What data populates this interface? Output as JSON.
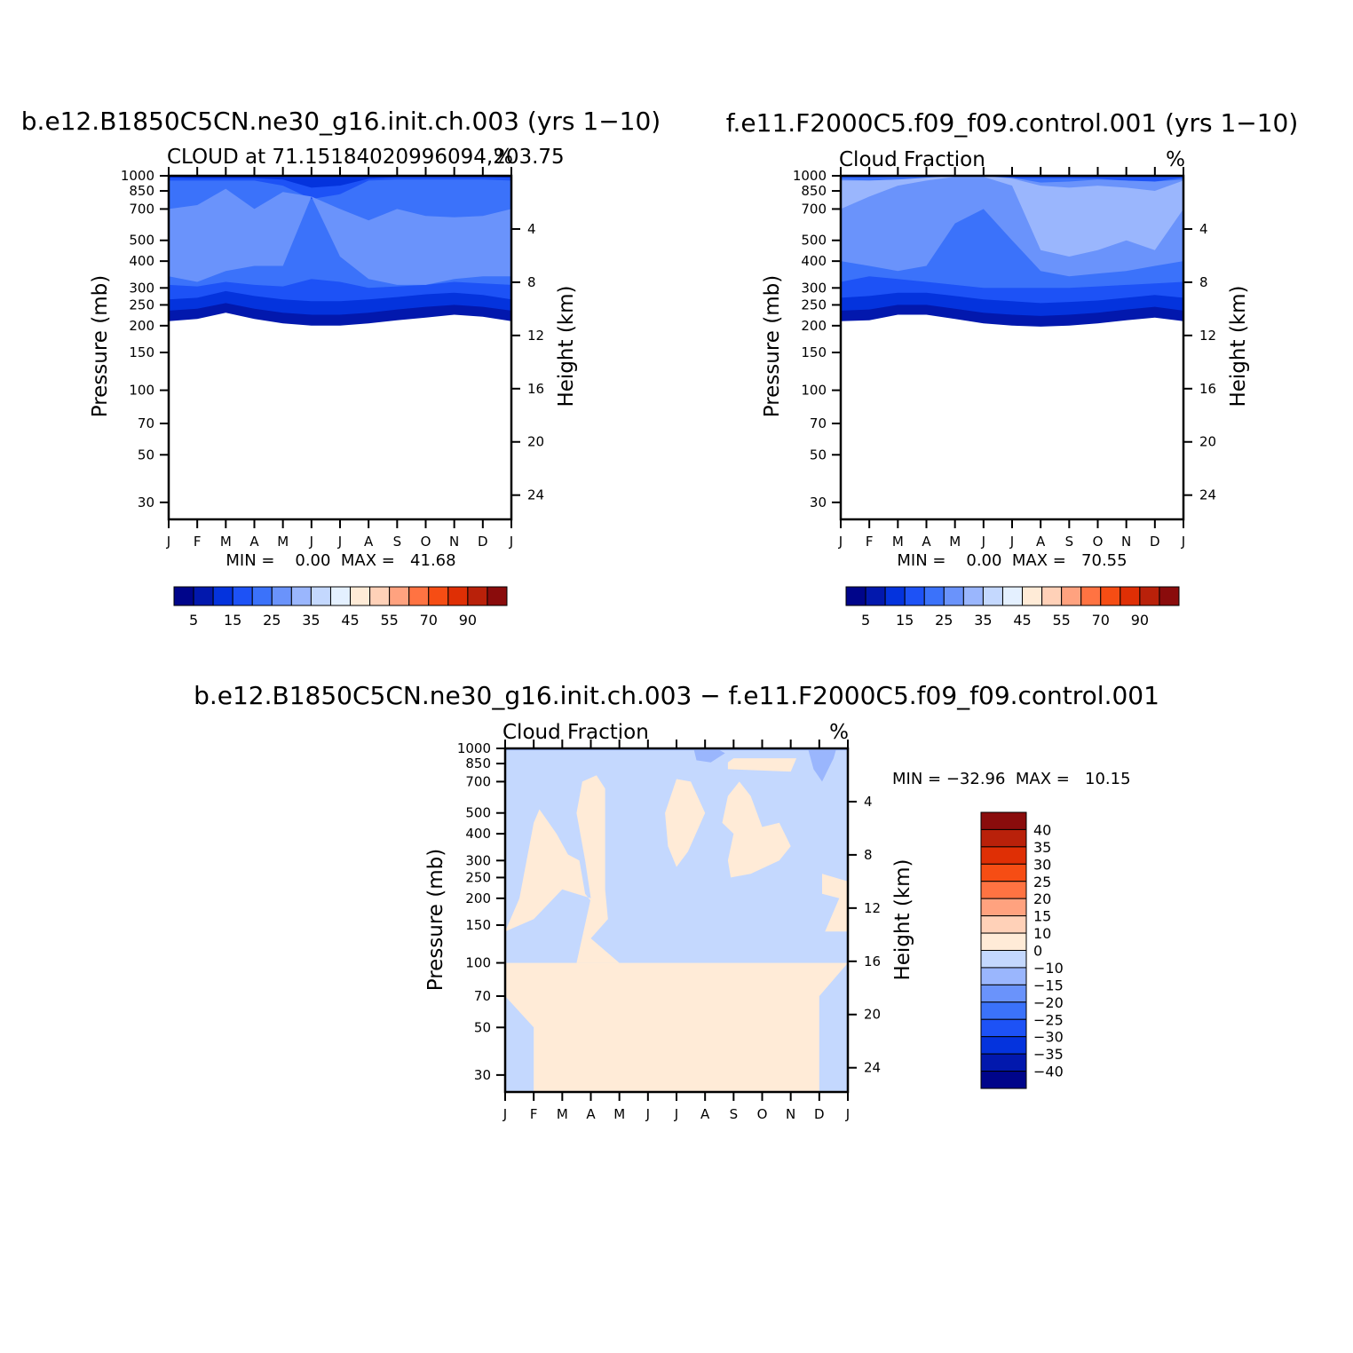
{
  "colors": {
    "abs_levels": [
      "#00058a",
      "#0218ad",
      "#0433dd",
      "#1d52f6",
      "#3b72fa",
      "#6a93fb",
      "#9ab6fd",
      "#c4d8fe",
      "#e4f0ff",
      "#ffebd7",
      "#ffd1b8",
      "#ffa27f",
      "#ff7342",
      "#f64d14",
      "#df2f05",
      "#b9210a",
      "#8a0c0c"
    ],
    "diff_levels": [
      "#00058a",
      "#0218ad",
      "#0433dd",
      "#1d52f6",
      "#3b72fa",
      "#6a93fb",
      "#9ab6fd",
      "#c4d8fe",
      "#e4f0ff",
      "#ffebd7",
      "#ffd1b8",
      "#ffa27f",
      "#ff7342",
      "#f64d14",
      "#df2f05",
      "#b9210a",
      "#8a0c0c"
    ]
  },
  "chart_data": [
    {
      "type": "contour",
      "title": "b.e12.B1850C5CN.ne30_g16.init.ch.003 (yrs 1−10)",
      "subtitle_left": "CLOUD at 71.15184020996094,203.75",
      "subtitle_right": "%",
      "ylabel": "Pressure (mb)",
      "ylabel_right": "Height (km)",
      "x_ticks": [
        "J",
        "F",
        "M",
        "A",
        "M",
        "J",
        "J",
        "A",
        "S",
        "O",
        "N",
        "D",
        "J"
      ],
      "y_ticks": [
        30,
        50,
        70,
        100,
        150,
        200,
        250,
        300,
        400,
        500,
        700,
        850,
        1000
      ],
      "y_right_ticks": [
        24,
        20,
        16,
        12,
        8,
        4
      ],
      "ylim": [
        1000,
        25
      ],
      "y_scale": "log",
      "min_max_text": "MIN =    0.00  MAX =   41.68",
      "min": 0.0,
      "max": 41.68,
      "colorbar": {
        "orientation": "horizontal",
        "labels": [
          "5",
          "15",
          "25",
          "35",
          "45",
          "55",
          "70",
          "90"
        ]
      },
      "bands": [
        {
          "level": 0,
          "profile": [
            [
              25,
              1000
            ]
          ]
        },
        {
          "level": 1,
          "profile": [
            [
              210,
              1000
            ],
            [
              215,
              1000
            ],
            [
              230,
              1000
            ],
            [
              215,
              1000
            ],
            [
              205,
              1000
            ],
            [
              200,
              1000
            ],
            [
              200,
              1000
            ],
            [
              205,
              1000
            ],
            [
              212,
              1000
            ],
            [
              218,
              1000
            ],
            [
              225,
              1000
            ],
            [
              220,
              1000
            ],
            [
              210,
              1000
            ]
          ]
        },
        {
          "level": 2,
          "profile": [
            [
              235,
              1000
            ],
            [
              240,
              1000
            ],
            [
              255,
              1000
            ],
            [
              240,
              1000
            ],
            [
              230,
              1000
            ],
            [
              225,
              1000
            ],
            [
              225,
              1000
            ],
            [
              230,
              1000
            ],
            [
              238,
              1000
            ],
            [
              245,
              1000
            ],
            [
              250,
              1000
            ],
            [
              245,
              1000
            ],
            [
              235,
              1000
            ]
          ]
        },
        {
          "level": 3,
          "profile": [
            [
              265,
              980
            ],
            [
              270,
              975
            ],
            [
              290,
              975
            ],
            [
              275,
              975
            ],
            [
              265,
              960
            ],
            [
              260,
              880
            ],
            [
              260,
              900
            ],
            [
              265,
              970
            ],
            [
              272,
              985
            ],
            [
              280,
              985
            ],
            [
              285,
              985
            ],
            [
              278,
              985
            ],
            [
              265,
              980
            ]
          ]
        },
        {
          "level": 4,
          "profile": [
            [
              310,
              950
            ],
            [
              305,
              950
            ],
            [
              320,
              950
            ],
            [
              310,
              950
            ],
            [
              305,
              900
            ],
            [
              330,
              780
            ],
            [
              320,
              820
            ],
            [
              300,
              950
            ],
            [
              305,
              960
            ],
            [
              310,
              960
            ],
            [
              320,
              960
            ],
            [
              315,
              960
            ],
            [
              310,
              950
            ]
          ]
        },
        {
          "level": 5,
          "profile": [
            [
              340,
              700
            ],
            [
              320,
              730
            ],
            [
              360,
              870
            ],
            [
              380,
              700
            ],
            [
              380,
              840
            ],
            [
              800,
              800
            ],
            [
              420,
              700
            ],
            [
              330,
              620
            ],
            [
              310,
              700
            ],
            [
              310,
              650
            ],
            [
              330,
              640
            ],
            [
              340,
              650
            ],
            [
              340,
              700
            ]
          ]
        }
      ]
    },
    {
      "type": "contour",
      "title": "f.e11.F2000C5.f09_f09.control.001 (yrs 1−10)",
      "subtitle_left": "Cloud Fraction",
      "subtitle_right": "%",
      "ylabel": "Pressure (mb)",
      "ylabel_right": "Height (km)",
      "x_ticks": [
        "J",
        "F",
        "M",
        "A",
        "M",
        "J",
        "J",
        "A",
        "S",
        "O",
        "N",
        "D",
        "J"
      ],
      "y_ticks": [
        30,
        50,
        70,
        100,
        150,
        200,
        250,
        300,
        400,
        500,
        700,
        850,
        1000
      ],
      "y_right_ticks": [
        24,
        20,
        16,
        12,
        8,
        4
      ],
      "ylim": [
        1000,
        25
      ],
      "y_scale": "log",
      "min_max_text": "MIN =    0.00  MAX =   70.55",
      "min": 0.0,
      "max": 70.55,
      "colorbar": {
        "orientation": "horizontal",
        "labels": [
          "5",
          "15",
          "25",
          "35",
          "45",
          "55",
          "70",
          "90"
        ]
      },
      "bands": [
        {
          "level": 0,
          "profile": [
            [
              25,
              1000
            ]
          ]
        },
        {
          "level": 1,
          "profile": [
            [
              210,
              1000
            ],
            [
              212,
              1000
            ],
            [
              225,
              1000
            ],
            [
              225,
              1000
            ],
            [
              215,
              1000
            ],
            [
              205,
              1000
            ],
            [
              200,
              1000
            ],
            [
              198,
              1000
            ],
            [
              200,
              1000
            ],
            [
              205,
              1000
            ],
            [
              212,
              1000
            ],
            [
              218,
              1000
            ],
            [
              210,
              1000
            ]
          ]
        },
        {
          "level": 2,
          "profile": [
            [
              235,
              1000
            ],
            [
              238,
              1000
            ],
            [
              250,
              1000
            ],
            [
              250,
              1000
            ],
            [
              240,
              1000
            ],
            [
              230,
              1000
            ],
            [
              225,
              1000
            ],
            [
              222,
              1000
            ],
            [
              225,
              1000
            ],
            [
              230,
              1000
            ],
            [
              238,
              1000
            ],
            [
              245,
              1000
            ],
            [
              235,
              1000
            ]
          ]
        },
        {
          "level": 3,
          "profile": [
            [
              270,
              1000
            ],
            [
              275,
              1000
            ],
            [
              285,
              1000
            ],
            [
              285,
              1000
            ],
            [
              275,
              1000
            ],
            [
              265,
              1000
            ],
            [
              260,
              1000
            ],
            [
              255,
              1000
            ],
            [
              258,
              1000
            ],
            [
              262,
              1000
            ],
            [
              270,
              1000
            ],
            [
              278,
              1000
            ],
            [
              270,
              1000
            ]
          ]
        },
        {
          "level": 4,
          "profile": [
            [
              320,
              980
            ],
            [
              340,
              980
            ],
            [
              330,
              990
            ],
            [
              320,
              990
            ],
            [
              310,
              990
            ],
            [
              300,
              985
            ],
            [
              300,
              975
            ],
            [
              300,
              975
            ],
            [
              300,
              975
            ],
            [
              305,
              970
            ],
            [
              310,
              950
            ],
            [
              315,
              940
            ],
            [
              320,
              980
            ]
          ]
        },
        {
          "level": 5,
          "profile": [
            [
              400,
              960
            ],
            [
              380,
              950
            ],
            [
              360,
              960
            ],
            [
              380,
              970
            ],
            [
              600,
              990
            ],
            [
              700,
              995
            ],
            [
              500,
              980
            ],
            [
              360,
              930
            ],
            [
              340,
              940
            ],
            [
              350,
              960
            ],
            [
              360,
              950
            ],
            [
              380,
              940
            ],
            [
              400,
              960
            ]
          ]
        },
        {
          "level": 6,
          "profile": [
            [
              700,
              950
            ],
            [
              800,
              950
            ],
            [
              900,
              960
            ],
            [
              950,
              980
            ],
            [
              990,
              1000
            ],
            [
              990,
              1000
            ],
            [
              900,
              970
            ],
            [
              450,
              900
            ],
            [
              420,
              880
            ],
            [
              450,
              900
            ],
            [
              500,
              880
            ],
            [
              450,
              850
            ],
            [
              700,
              950
            ]
          ]
        }
      ]
    },
    {
      "type": "contour",
      "title": "b.e12.B1850C5CN.ne30_g16.init.ch.003 − f.e11.F2000C5.f09_f09.control.001",
      "subtitle_left": "Cloud Fraction",
      "subtitle_right": "%",
      "ylabel": "Pressure (mb)",
      "ylabel_right": "Height (km)",
      "x_ticks": [
        "J",
        "F",
        "M",
        "A",
        "M",
        "J",
        "J",
        "A",
        "S",
        "O",
        "N",
        "D",
        "J"
      ],
      "y_ticks": [
        30,
        50,
        70,
        100,
        150,
        200,
        250,
        300,
        400,
        500,
        700,
        850,
        1000
      ],
      "y_right_ticks": [
        24,
        20,
        16,
        12,
        8,
        4
      ],
      "ylim": [
        1000,
        25
      ],
      "y_scale": "log",
      "min_max_text": "MIN = −32.96  MAX =   10.15",
      "min": -32.96,
      "max": 10.15,
      "colorbar": {
        "orientation": "vertical",
        "labels": [
          "40",
          "35",
          "30",
          "25",
          "20",
          "15",
          "10",
          "0",
          "−10",
          "−15",
          "−20",
          "−25",
          "−30",
          "−35",
          "−40"
        ]
      },
      "base_level": 7,
      "positive_level": 9
    }
  ]
}
